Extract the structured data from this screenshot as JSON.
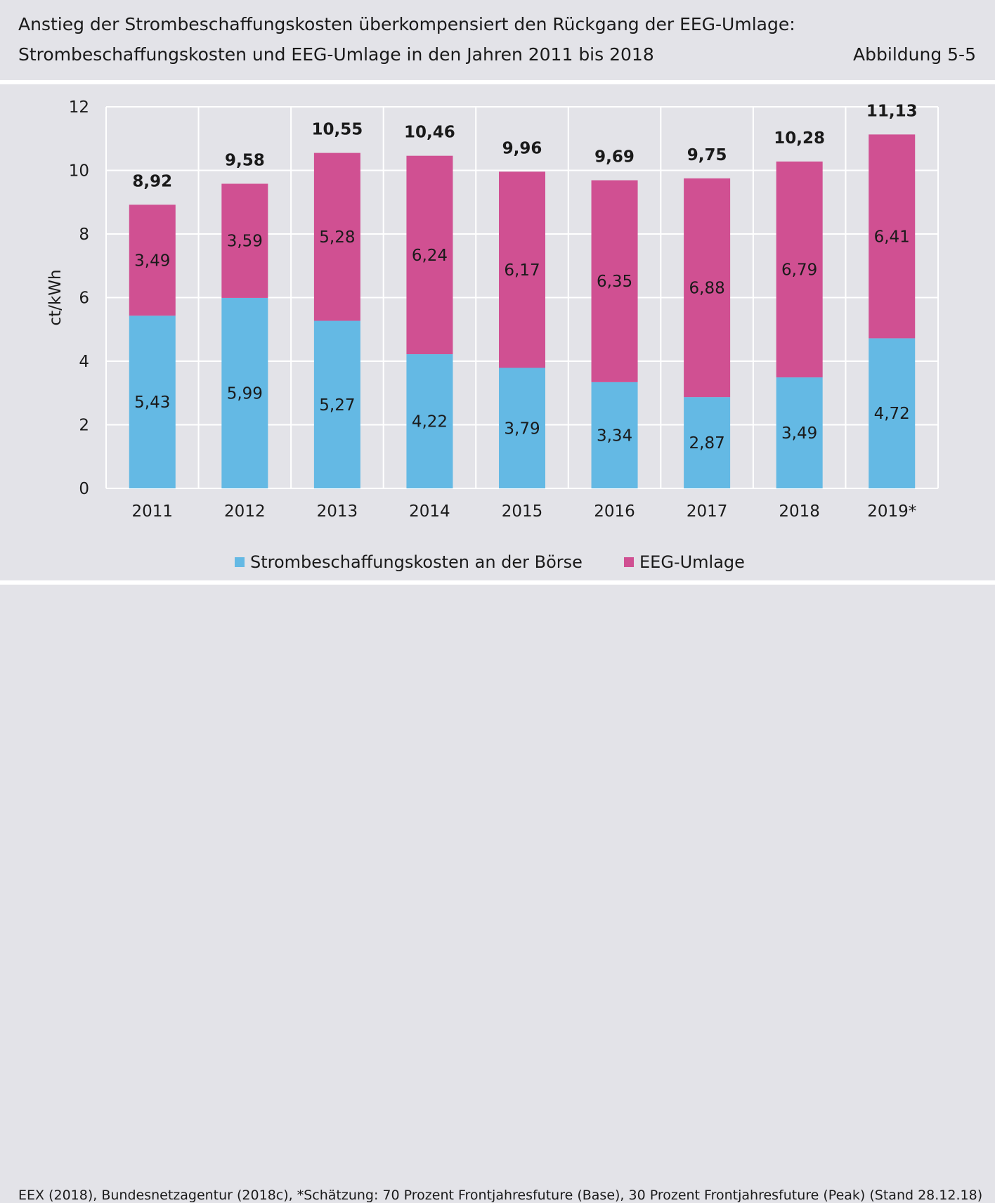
{
  "header": {
    "title_line1": "Anstieg der Strombeschaffungskosten überkompensiert den Rückgang der EEG-Umlage:",
    "title_line2": "Strombeschaffungskosten und EEG-Umlage in den Jahren 2011 bis 2018",
    "figure_label": "Abbildung 5-5"
  },
  "footer": {
    "source": "EEX (2018), Bundesnetzagentur (2018c), *Schätzung: 70 Prozent Frontjahresfuture (Base), 30 Prozent Frontjahresfuture (Peak) (Stand 28.12.18)"
  },
  "colors": {
    "boerse": "#64b9e4",
    "eeg": "#d05092",
    "grid": "#ffffff",
    "background": "#e3e3e8"
  },
  "chart_data": {
    "type": "bar",
    "stacked": true,
    "ylabel": "ct/kWh",
    "ylim": [
      0,
      12
    ],
    "yticks": [
      "0",
      "2",
      "4",
      "6",
      "8",
      "10",
      "12"
    ],
    "grid": true,
    "legend_position": "bottom",
    "categories": [
      "2011",
      "2012",
      "2013",
      "2014",
      "2015",
      "2016",
      "2017",
      "2018",
      "2019*"
    ],
    "series": [
      {
        "name": "Strombeschaffungskosten an der Börse",
        "values": [
          5.43,
          5.99,
          5.27,
          4.22,
          3.79,
          3.34,
          2.87,
          3.49,
          4.72
        ],
        "labels": [
          "5,43",
          "5,99",
          "5,27",
          "4,22",
          "3,79",
          "3,34",
          "2,87",
          "3,49",
          "4,72"
        ]
      },
      {
        "name": "EEG-Umlage",
        "values": [
          3.49,
          3.59,
          5.28,
          6.24,
          6.17,
          6.35,
          6.88,
          6.79,
          6.41
        ],
        "labels": [
          "3,49",
          "3,59",
          "5,28",
          "6,24",
          "6,17",
          "6,35",
          "6,88",
          "6,79",
          "6,41"
        ]
      }
    ],
    "totals": [
      8.92,
      9.58,
      10.55,
      10.46,
      9.96,
      9.69,
      9.75,
      10.28,
      11.13
    ],
    "total_labels": [
      "8,92",
      "9,58",
      "10,55",
      "10,46",
      "9,96",
      "9,69",
      "9,75",
      "10,28",
      "11,13"
    ]
  }
}
